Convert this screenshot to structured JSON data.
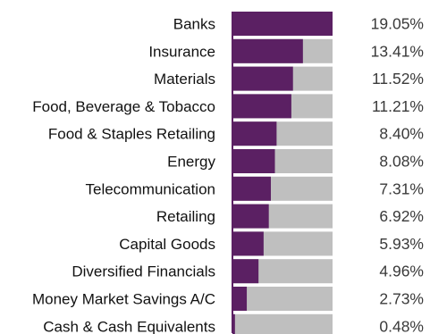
{
  "chart_data": {
    "type": "bar",
    "orientation": "horizontal",
    "categories": [
      "Banks",
      "Insurance",
      "Materials",
      "Food, Beverage & Tobacco",
      "Food & Staples Retailing",
      "Energy",
      "Telecommunication",
      "Retailing",
      "Capital Goods",
      "Diversified Financials",
      "Money Market Savings A/C",
      "Cash & Cash Equivalents"
    ],
    "values": [
      19.05,
      13.41,
      11.52,
      11.21,
      8.4,
      8.08,
      7.31,
      6.92,
      5.93,
      4.96,
      2.73,
      0.48
    ],
    "value_labels": [
      "19.05%",
      "13.41%",
      "11.52%",
      "11.21%",
      "8.40%",
      "8.08%",
      "7.31%",
      "6.92%",
      "5.93%",
      "4.96%",
      "2.73%",
      "0.48%"
    ],
    "xlim": [
      0,
      19.05
    ],
    "title": "",
    "xlabel": "",
    "ylabel": "",
    "legend": "none",
    "grid": false,
    "colors": {
      "bar": "#5b2063",
      "track": "#bfbfbf",
      "axis": "#5b2063"
    }
  }
}
